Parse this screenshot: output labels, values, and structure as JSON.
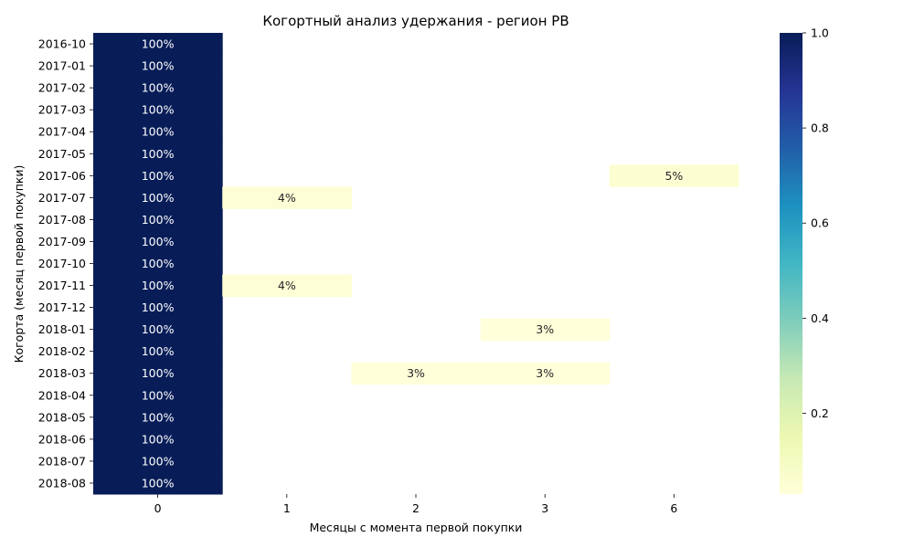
{
  "chart_data": {
    "type": "heatmap",
    "title": "Когортный анализ удержания - регион PB",
    "xlabel": "Месяцы с момента первой покупки",
    "ylabel": "Когорта (месяц первой покупки)",
    "x_categories": [
      "0",
      "1",
      "2",
      "3",
      "6"
    ],
    "y_categories": [
      "2016-10",
      "2017-01",
      "2017-02",
      "2017-03",
      "2017-04",
      "2017-05",
      "2017-06",
      "2017-07",
      "2017-08",
      "2017-09",
      "2017-10",
      "2017-11",
      "2017-12",
      "2018-01",
      "2018-02",
      "2018-03",
      "2018-04",
      "2018-05",
      "2018-06",
      "2018-07",
      "2018-08"
    ],
    "values": [
      [
        1.0,
        null,
        null,
        null,
        null
      ],
      [
        1.0,
        null,
        null,
        null,
        null
      ],
      [
        1.0,
        null,
        null,
        null,
        null
      ],
      [
        1.0,
        null,
        null,
        null,
        null
      ],
      [
        1.0,
        null,
        null,
        null,
        null
      ],
      [
        1.0,
        null,
        null,
        null,
        null
      ],
      [
        1.0,
        null,
        null,
        null,
        0.05
      ],
      [
        1.0,
        0.04,
        null,
        null,
        null
      ],
      [
        1.0,
        null,
        null,
        null,
        null
      ],
      [
        1.0,
        null,
        null,
        null,
        null
      ],
      [
        1.0,
        null,
        null,
        null,
        null
      ],
      [
        1.0,
        0.04,
        null,
        null,
        null
      ],
      [
        1.0,
        null,
        null,
        null,
        null
      ],
      [
        1.0,
        null,
        null,
        0.03,
        null
      ],
      [
        1.0,
        null,
        null,
        null,
        null
      ],
      [
        1.0,
        null,
        0.03,
        0.03,
        null
      ],
      [
        1.0,
        null,
        null,
        null,
        null
      ],
      [
        1.0,
        null,
        null,
        null,
        null
      ],
      [
        1.0,
        null,
        null,
        null,
        null
      ],
      [
        1.0,
        null,
        null,
        null,
        null
      ],
      [
        1.0,
        null,
        null,
        null,
        null
      ]
    ],
    "cell_labels": [
      [
        "100%",
        "",
        "",
        "",
        ""
      ],
      [
        "100%",
        "",
        "",
        "",
        ""
      ],
      [
        "100%",
        "",
        "",
        "",
        ""
      ],
      [
        "100%",
        "",
        "",
        "",
        ""
      ],
      [
        "100%",
        "",
        "",
        "",
        ""
      ],
      [
        "100%",
        "",
        "",
        "",
        ""
      ],
      [
        "100%",
        "",
        "",
        "",
        "5%"
      ],
      [
        "100%",
        "4%",
        "",
        "",
        ""
      ],
      [
        "100%",
        "",
        "",
        "",
        ""
      ],
      [
        "100%",
        "",
        "",
        "",
        ""
      ],
      [
        "100%",
        "",
        "",
        "",
        ""
      ],
      [
        "100%",
        "4%",
        "",
        "",
        ""
      ],
      [
        "100%",
        "",
        "",
        "",
        ""
      ],
      [
        "100%",
        "",
        "",
        "3%",
        ""
      ],
      [
        "100%",
        "",
        "",
        "",
        ""
      ],
      [
        "100%",
        "",
        "3%",
        "3%",
        ""
      ],
      [
        "100%",
        "",
        "",
        "",
        ""
      ],
      [
        "100%",
        "",
        "",
        "",
        ""
      ],
      [
        "100%",
        "",
        "",
        "",
        ""
      ],
      [
        "100%",
        "",
        "",
        "",
        ""
      ],
      [
        "100%",
        "",
        "",
        "",
        ""
      ]
    ],
    "colormap": "YlGnBu",
    "colorbar": {
      "range": [
        0.03,
        1.0
      ],
      "ticks": [
        0.2,
        0.4,
        0.6,
        0.8,
        1.0
      ],
      "tick_labels": [
        "0.2",
        "0.4",
        "0.6",
        "0.8",
        "1.0"
      ]
    },
    "colors": {
      "low": "#ffffd9",
      "high": "#081d58",
      "dark_cell_text": "#ffffff",
      "light_cell_text": "#262626"
    }
  }
}
